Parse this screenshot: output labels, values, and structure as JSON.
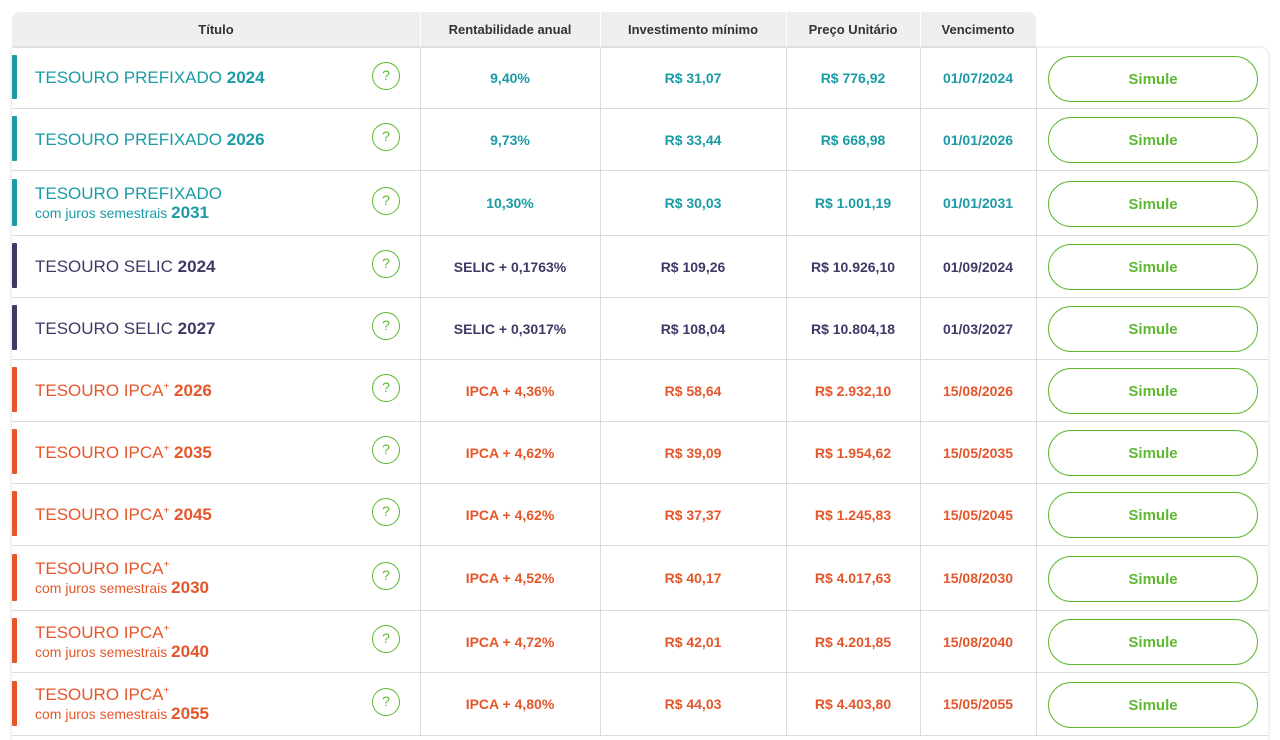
{
  "header": {
    "titulo": "Título",
    "rentabilidade": "Rentabilidade anual",
    "investimento": "Investimento mínimo",
    "preco": "Preço Unitário",
    "vencimento": "Vencimento"
  },
  "colors": {
    "prefixado": "#1a9ba5",
    "selic": "#3d3a66",
    "ipca": "#e5562a",
    "accent": "#5fb832"
  },
  "help_symbol": "?",
  "simule_label": "Simule",
  "rows": [
    {
      "group": "prefixado",
      "name": "TESOURO PREFIXADO",
      "plus": "",
      "sub": "",
      "year": "2024",
      "rent": "9,40%",
      "inv": "R$ 31,07",
      "price": "R$ 776,92",
      "venc": "01/07/2024"
    },
    {
      "group": "prefixado",
      "name": "TESOURO PREFIXADO",
      "plus": "",
      "sub": "",
      "year": "2026",
      "rent": "9,73%",
      "inv": "R$ 33,44",
      "price": "R$ 668,98",
      "venc": "01/01/2026"
    },
    {
      "group": "prefixado",
      "name": "TESOURO PREFIXADO",
      "plus": "",
      "sub": "com juros semestrais",
      "year": "2031",
      "rent": "10,30%",
      "inv": "R$ 30,03",
      "price": "R$ 1.001,19",
      "venc": "01/01/2031"
    },
    {
      "group": "selic",
      "name": "TESOURO SELIC",
      "plus": "",
      "sub": "",
      "year": "2024",
      "rent": "SELIC + 0,1763%",
      "inv": "R$ 109,26",
      "price": "R$ 10.926,10",
      "venc": "01/09/2024"
    },
    {
      "group": "selic",
      "name": "TESOURO SELIC",
      "plus": "",
      "sub": "",
      "year": "2027",
      "rent": "SELIC + 0,3017%",
      "inv": "R$ 108,04",
      "price": "R$ 10.804,18",
      "venc": "01/03/2027"
    },
    {
      "group": "ipca",
      "name": "TESOURO IPCA",
      "plus": "+",
      "sub": "",
      "year": "2026",
      "rent": "IPCA + 4,36%",
      "inv": "R$ 58,64",
      "price": "R$ 2.932,10",
      "venc": "15/08/2026"
    },
    {
      "group": "ipca",
      "name": "TESOURO IPCA",
      "plus": "+",
      "sub": "",
      "year": "2035",
      "rent": "IPCA + 4,62%",
      "inv": "R$ 39,09",
      "price": "R$ 1.954,62",
      "venc": "15/05/2035"
    },
    {
      "group": "ipca",
      "name": "TESOURO IPCA",
      "plus": "+",
      "sub": "",
      "year": "2045",
      "rent": "IPCA + 4,62%",
      "inv": "R$ 37,37",
      "price": "R$ 1.245,83",
      "venc": "15/05/2045"
    },
    {
      "group": "ipca",
      "name": "TESOURO IPCA",
      "plus": "+",
      "sub": "com juros semestrais",
      "year": "2030",
      "rent": "IPCA + 4,52%",
      "inv": "R$ 40,17",
      "price": "R$ 4.017,63",
      "venc": "15/08/2030"
    },
    {
      "group": "ipca",
      "name": "TESOURO IPCA",
      "plus": "+",
      "sub": "com juros semestrais",
      "year": "2040",
      "rent": "IPCA + 4,72%",
      "inv": "R$ 42,01",
      "price": "R$ 4.201,85",
      "venc": "15/08/2040"
    },
    {
      "group": "ipca",
      "name": "TESOURO IPCA",
      "plus": "+",
      "sub": "com juros semestrais",
      "year": "2055",
      "rent": "IPCA + 4,80%",
      "inv": "R$ 44,03",
      "price": "R$ 4.403,80",
      "venc": "15/05/2055"
    }
  ]
}
